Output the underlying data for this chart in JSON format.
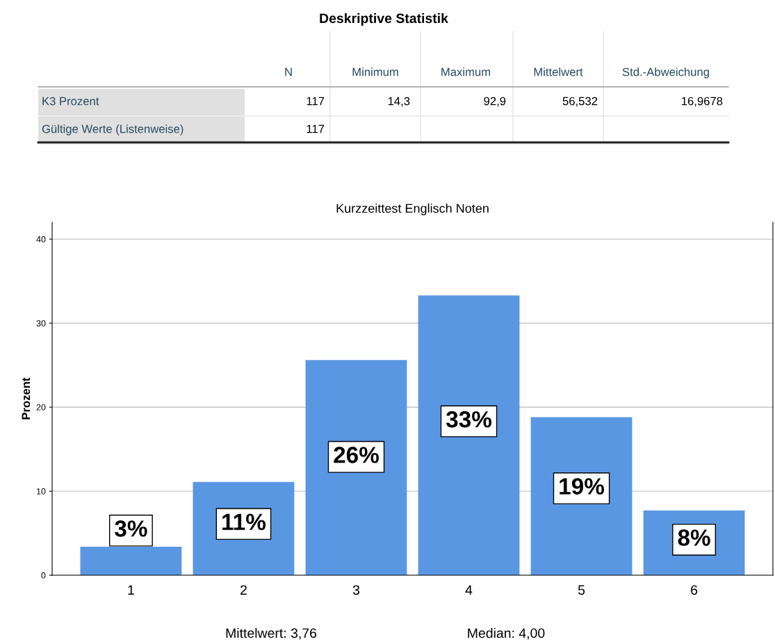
{
  "chart_data": [
    {
      "type": "other",
      "title": "Deskriptive Statistik",
      "categories": [
        "N",
        "Minimum",
        "Maximum",
        "Mittelwert",
        "Std.-Abweichung"
      ],
      "y_categories": [
        "K3 Prozent",
        "Gültige Werte (Listenweise)"
      ],
      "cell_labels": [
        [
          "117",
          "14,3",
          "92,9",
          "56,532",
          "16,9678"
        ],
        [
          "117",
          null,
          null,
          null,
          null
        ]
      ]
    },
    {
      "type": "bar",
      "title": "Kurzzeittest Englisch Noten",
      "ylabel": "Prozent",
      "categories": [
        "1",
        "2",
        "3",
        "4",
        "5",
        "6"
      ],
      "values": [
        3.4,
        11.1,
        25.6,
        33.3,
        18.8,
        7.7
      ],
      "value_labels": [
        "3%",
        "11%",
        "26%",
        "33%",
        "19%",
        "8%"
      ],
      "color": "#5a97e3",
      "ylim": [
        0,
        42
      ],
      "yticks": [
        0,
        10,
        20,
        30,
        40
      ],
      "grid": "y",
      "annotations": [
        "Mittelwert: 3,76",
        "Median: 4,00"
      ]
    }
  ]
}
